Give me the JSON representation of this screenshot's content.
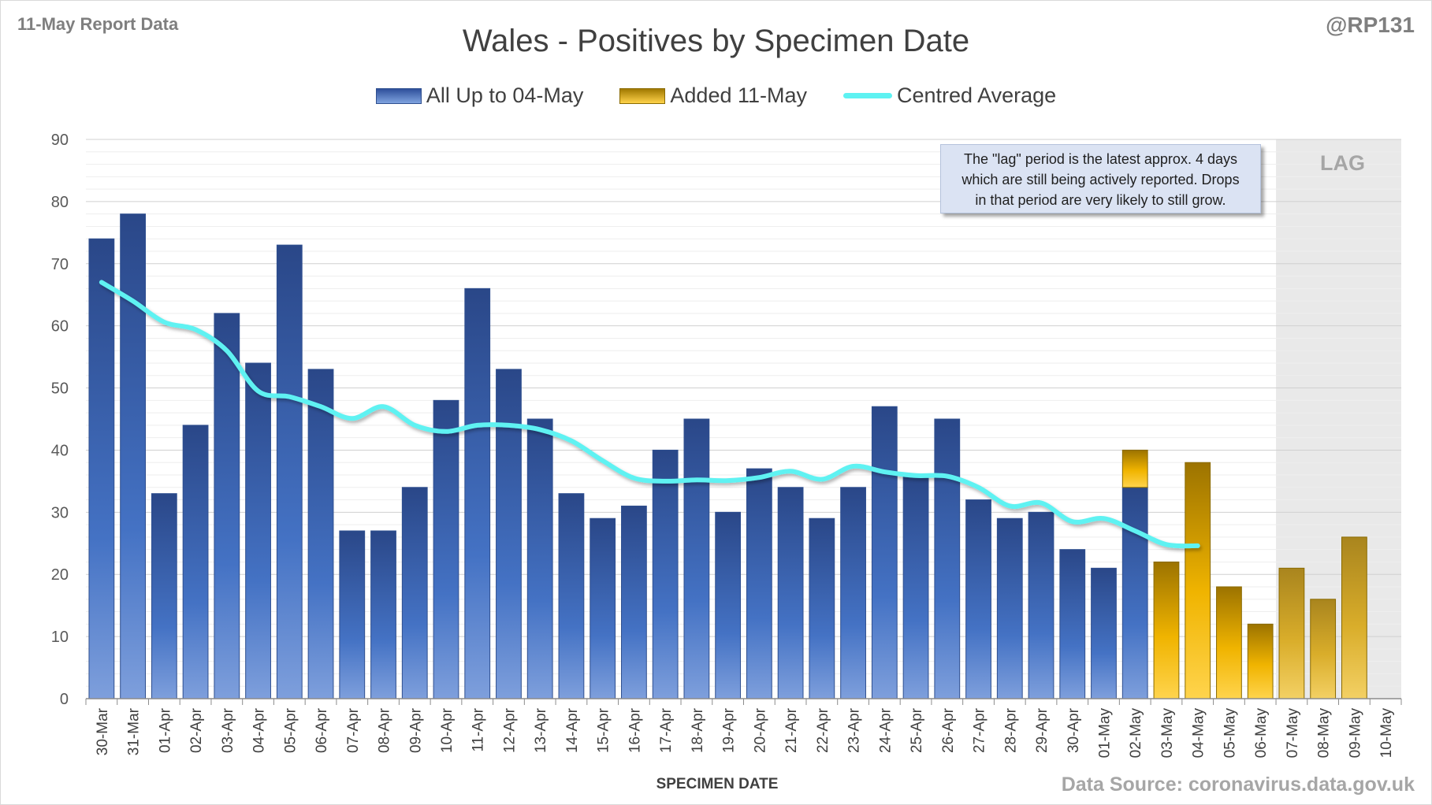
{
  "header": {
    "report_label": "11-May Report Data",
    "handle": "@RP131"
  },
  "annotation": {
    "line1": "The \"lag\" period is the latest approx. 4 days",
    "line2": "which are still being actively reported.  Drops",
    "line3": "in that period are very likely to still grow."
  },
  "footer": {
    "source": "Data Source: coronavirus.data.gov.uk"
  },
  "colors": {
    "blue_series": "#3b5fae",
    "gold_series": "#e0a800",
    "average_line": "#5ef2f2",
    "lag_shade": "#e9e9e9"
  },
  "chart_data": {
    "type": "bar",
    "title": "Wales - Positives by Specimen Date",
    "xlabel": "SPECIMEN DATE",
    "ylabel": "",
    "ylim": [
      0,
      90
    ],
    "yticks": [
      0,
      10,
      20,
      30,
      40,
      50,
      60,
      70,
      80,
      90
    ],
    "grid": true,
    "legend_position": "top-center",
    "lag_label": "LAG",
    "lag_start": "07-May",
    "categories": [
      "30-Mar",
      "31-Mar",
      "01-Apr",
      "02-Apr",
      "03-Apr",
      "04-Apr",
      "05-Apr",
      "06-Apr",
      "07-Apr",
      "08-Apr",
      "09-Apr",
      "10-Apr",
      "11-Apr",
      "12-Apr",
      "13-Apr",
      "14-Apr",
      "15-Apr",
      "16-Apr",
      "17-Apr",
      "18-Apr",
      "19-Apr",
      "20-Apr",
      "21-Apr",
      "22-Apr",
      "23-Apr",
      "24-Apr",
      "25-Apr",
      "26-Apr",
      "27-Apr",
      "28-Apr",
      "29-Apr",
      "30-Apr",
      "01-May",
      "02-May",
      "03-May",
      "04-May",
      "05-May",
      "06-May",
      "07-May",
      "08-May",
      "09-May",
      "10-May"
    ],
    "series": [
      {
        "name": "All Up to 04-May",
        "values": [
          74,
          78,
          33,
          44,
          62,
          54,
          73,
          53,
          27,
          27,
          34,
          48,
          66,
          53,
          45,
          33,
          29,
          31,
          40,
          45,
          30,
          37,
          34,
          29,
          34,
          47,
          36,
          45,
          32,
          29,
          30,
          24,
          21,
          34,
          0,
          0,
          0,
          0,
          0,
          0,
          0,
          0
        ]
      },
      {
        "name": "Added 11-May",
        "values": [
          0,
          0,
          0,
          0,
          0,
          0,
          0,
          0,
          0,
          0,
          0,
          0,
          0,
          0,
          0,
          0,
          0,
          0,
          0,
          0,
          0,
          0,
          0,
          0,
          0,
          0,
          0,
          0,
          0,
          0,
          0,
          0,
          0,
          6,
          22,
          38,
          18,
          12,
          21,
          16,
          26,
          0
        ]
      },
      {
        "name": "Centred Average",
        "type": "line",
        "values": [
          67,
          64,
          60.6,
          59.4,
          56,
          49.5,
          48.6,
          47,
          45.1,
          47,
          44,
          43,
          44,
          44,
          43.3,
          41.5,
          38.3,
          35.5,
          35,
          35.2,
          35.1,
          35.6,
          36.6,
          35.3,
          37.4,
          36.5,
          35.9,
          35.8,
          34,
          31,
          31.5,
          28.5,
          29,
          27,
          24.8,
          24.6,
          null,
          null,
          null,
          null,
          null,
          null
        ]
      }
    ]
  }
}
